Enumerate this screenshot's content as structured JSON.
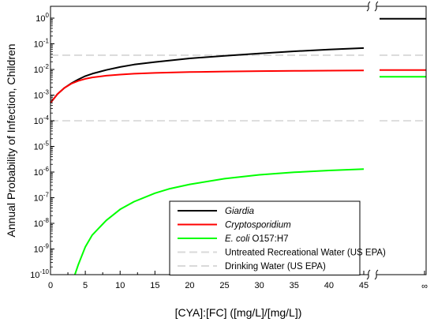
{
  "chart_data": {
    "type": "line",
    "xlabel": "[CYA]:[FC] ([mg/L]/[mg/L])",
    "ylabel": "Annual Probability of Infection, Children",
    "xlim": [
      0,
      45
    ],
    "ylim": [
      1e-10,
      2
    ],
    "yscale": "log",
    "x_ticks": [
      "0",
      "5",
      "10",
      "15",
      "20",
      "25",
      "30",
      "35",
      "40",
      "45"
    ],
    "x_break_label": "∞",
    "y_tick_labels": [
      {
        "base": "10",
        "exp": "0"
      },
      {
        "base": "10",
        "exp": "-1"
      },
      {
        "base": "10",
        "exp": "-2"
      },
      {
        "base": "10",
        "exp": "-3"
      },
      {
        "base": "10",
        "exp": "-4"
      },
      {
        "base": "10",
        "exp": "-5"
      },
      {
        "base": "10",
        "exp": "-6"
      },
      {
        "base": "10",
        "exp": "-7"
      },
      {
        "base": "10",
        "exp": "-8"
      },
      {
        "base": "10",
        "exp": "-9"
      },
      {
        "base": "10",
        "exp": "-10"
      }
    ],
    "legend_position": "lower-right",
    "series": [
      {
        "name": "Giardia",
        "name_rest": "",
        "italic": true,
        "color": "#000000",
        "dashed": false,
        "x": [
          0,
          1,
          2,
          3,
          4,
          5,
          6,
          8,
          10,
          12,
          15,
          20,
          25,
          30,
          35,
          40,
          45
        ],
        "y": [
          0.0005,
          0.0011,
          0.0019,
          0.0029,
          0.0041,
          0.0055,
          0.0068,
          0.0095,
          0.0125,
          0.0155,
          0.0195,
          0.027,
          0.034,
          0.042,
          0.051,
          0.06,
          0.068
        ],
        "infinity_value": 0.95
      },
      {
        "name": "Cryptosporidium",
        "name_rest": "",
        "italic": true,
        "color": "#ff0000",
        "dashed": false,
        "x": [
          0,
          1,
          2,
          3,
          4,
          5,
          6,
          8,
          10,
          12,
          15,
          20,
          25,
          30,
          35,
          40,
          45
        ],
        "y": [
          0.0005,
          0.0011,
          0.0019,
          0.0028,
          0.0036,
          0.0043,
          0.0049,
          0.0057,
          0.0063,
          0.0068,
          0.0073,
          0.0079,
          0.0083,
          0.0086,
          0.0088,
          0.009,
          0.0091
        ],
        "infinity_value": 0.0095
      },
      {
        "name": "E. coli",
        "name_rest": " O157:H7",
        "italic": true,
        "color": "#00ff00",
        "dashed": false,
        "x": [
          3.5,
          4,
          5,
          6,
          8,
          10,
          12,
          15,
          17,
          20,
          25,
          30,
          35,
          40,
          45
        ],
        "y": [
          1e-10,
          2.5e-10,
          1.2e-09,
          3.5e-09,
          1.3e-08,
          3.5e-08,
          7e-08,
          1.5e-07,
          2.2e-07,
          3.3e-07,
          5.5e-07,
          7.8e-07,
          9.8e-07,
          1.15e-06,
          1.3e-06
        ],
        "infinity_value": 0.0052
      },
      {
        "name": "Untreated Recreational Water (US EPA)",
        "name_rest": "",
        "italic": false,
        "color": "#d9d9d9",
        "dashed": true,
        "constant": 0.036
      },
      {
        "name": "Drinking Water (US EPA)",
        "name_rest": "",
        "italic": false,
        "color": "#d9d9d9",
        "dashed": true,
        "constant": 0.0001
      }
    ]
  }
}
